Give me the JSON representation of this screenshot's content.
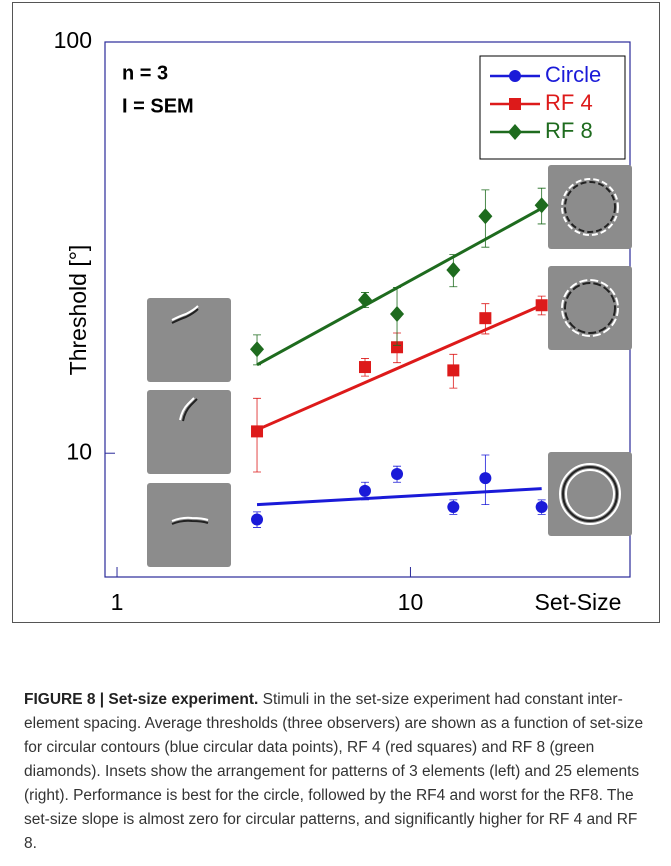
{
  "chart_data": {
    "type": "scatter",
    "xlog": true,
    "ylog": true,
    "y_label": "Threshold [°]",
    "x_label": "Set-Size",
    "annotations": [
      "n = 3",
      "I = SEM"
    ],
    "x": [
      3,
      7,
      9,
      14,
      18,
      28
    ],
    "xlim": [
      0.91,
      56
    ],
    "xticks": [
      1,
      10
    ],
    "ylim": [
      5,
      100
    ],
    "yticks": [
      10,
      100
    ],
    "legend": "upper right",
    "fit_x": [
      3,
      28
    ],
    "series": [
      {
        "name": "Circle",
        "color": "#1a1ad8",
        "marker": "circle",
        "values": [
          6.9,
          8.1,
          8.9,
          7.4,
          8.7,
          7.4
        ],
        "errors": [
          0.3,
          0.4,
          0.4,
          0.3,
          1.2,
          0.3
        ],
        "fit": [
          7.5,
          8.2
        ]
      },
      {
        "name": "RF 4",
        "color": "#dd1a1a",
        "marker": "square",
        "values": [
          11.3,
          16.2,
          18.1,
          15.9,
          21.3,
          22.9
        ],
        "errors": [
          2.3,
          0.8,
          1.5,
          1.5,
          1.8,
          1.2
        ],
        "fit": [
          11.4,
          22.9
        ]
      },
      {
        "name": "RF 8",
        "color": "#1e6b1e",
        "marker": "diamond",
        "values": [
          17.9,
          23.6,
          21.8,
          27.9,
          37.7,
          40.1
        ],
        "errors": [
          1.5,
          1.0,
          3.5,
          2.5,
          6,
          4
        ],
        "fit": [
          16.4,
          39.4
        ]
      }
    ]
  },
  "caption": {
    "label": "FIGURE 8 | Set-size experiment.",
    "text": "Stimuli in the set-size experiment had constant inter-element spacing. Average thresholds (three observers) are shown as a function of set-size for circular contours (blue circular data points), RF 4 (red squares) and RF 8 (green diamonds). Insets show the arrangement for patterns of 3 elements (left) and 25 elements (right). Performance is best for the circle, followed by the RF4 and worst for the RF8. The set-size slope is almost zero for circular patterns, and significantly higher for RF 4 and RF 8."
  }
}
